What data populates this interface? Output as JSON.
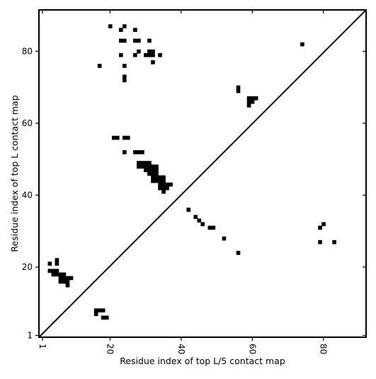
{
  "chart_data": {
    "type": "heatmap",
    "title": "",
    "xlabel": "Residue index of top L/5 contact map",
    "ylabel": "Residue index of top L contact map",
    "xlim": [
      0,
      92
    ],
    "ylim": [
      0.5,
      91.5
    ],
    "x_ticks": [
      1,
      20,
      40,
      60,
      80
    ],
    "y_ticks": [
      1,
      20,
      40,
      60,
      80
    ],
    "x_tick_labels": [
      "1",
      "20",
      "40",
      "60",
      "80"
    ],
    "y_tick_labels": [
      "1",
      "20",
      "40",
      "60",
      "80"
    ],
    "diagonal": true,
    "grid": false,
    "cell_color": "#000000",
    "upper_contacts": [
      [
        20,
        87
      ],
      [
        24,
        87
      ],
      [
        23,
        86
      ],
      [
        27,
        86
      ],
      [
        23,
        83
      ],
      [
        24,
        83
      ],
      [
        27,
        83
      ],
      [
        28,
        83
      ],
      [
        31,
        83
      ],
      [
        28,
        80
      ],
      [
        31,
        80
      ],
      [
        32,
        80
      ],
      [
        23,
        79
      ],
      [
        27,
        79
      ],
      [
        30,
        79
      ],
      [
        31,
        79
      ],
      [
        32,
        79
      ],
      [
        34,
        79
      ],
      [
        32,
        77
      ],
      [
        17,
        76
      ],
      [
        24,
        76
      ],
      [
        24,
        73
      ],
      [
        24,
        72
      ],
      [
        74,
        82
      ],
      [
        56,
        70
      ],
      [
        56,
        69
      ],
      [
        59,
        67
      ],
      [
        60,
        67
      ],
      [
        61,
        67
      ],
      [
        59,
        66
      ],
      [
        60,
        66
      ],
      [
        59,
        65
      ],
      [
        21,
        56
      ],
      [
        22,
        56
      ],
      [
        24,
        56
      ],
      [
        25,
        56
      ],
      [
        24,
        52
      ],
      [
        27,
        52
      ],
      [
        28,
        52
      ],
      [
        29,
        52
      ],
      [
        28,
        49
      ],
      [
        29,
        49
      ],
      [
        30,
        49
      ],
      [
        31,
        49
      ],
      [
        28,
        48
      ],
      [
        29,
        48
      ],
      [
        30,
        48
      ],
      [
        31,
        48
      ],
      [
        32,
        48
      ],
      [
        33,
        48
      ],
      [
        30,
        47
      ],
      [
        31,
        47
      ],
      [
        32,
        47
      ],
      [
        33,
        47
      ],
      [
        31,
        46
      ],
      [
        32,
        46
      ],
      [
        33,
        46
      ],
      [
        32,
        45
      ],
      [
        33,
        45
      ],
      [
        34,
        45
      ],
      [
        35,
        45
      ],
      [
        32,
        44
      ],
      [
        33,
        44
      ],
      [
        34,
        44
      ],
      [
        35,
        44
      ],
      [
        34,
        43
      ],
      [
        35,
        43
      ],
      [
        36,
        43
      ],
      [
        37,
        43
      ],
      [
        34,
        42
      ],
      [
        35,
        42
      ],
      [
        36,
        42
      ],
      [
        35,
        41
      ]
    ],
    "lower_contacts": [
      [
        42,
        36
      ],
      [
        44,
        34
      ],
      [
        45,
        33
      ],
      [
        46,
        32
      ],
      [
        48,
        31
      ],
      [
        49,
        31
      ],
      [
        52,
        28
      ],
      [
        56,
        24
      ],
      [
        79,
        31
      ],
      [
        80,
        32
      ],
      [
        79,
        27
      ],
      [
        83,
        27
      ],
      [
        3,
        21
      ],
      [
        5,
        22
      ],
      [
        5,
        21
      ],
      [
        3,
        19
      ],
      [
        4,
        19
      ],
      [
        5,
        19
      ],
      [
        4,
        18
      ],
      [
        5,
        18
      ],
      [
        6,
        18
      ],
      [
        7,
        18
      ],
      [
        6,
        17
      ],
      [
        7,
        17
      ],
      [
        8,
        17
      ],
      [
        9,
        17
      ],
      [
        6,
        16
      ],
      [
        7,
        16
      ],
      [
        8,
        16
      ],
      [
        8,
        15
      ],
      [
        16,
        8
      ],
      [
        17,
        8
      ],
      [
        18,
        8
      ],
      [
        16,
        7
      ],
      [
        18,
        6
      ],
      [
        19,
        6
      ]
    ]
  }
}
